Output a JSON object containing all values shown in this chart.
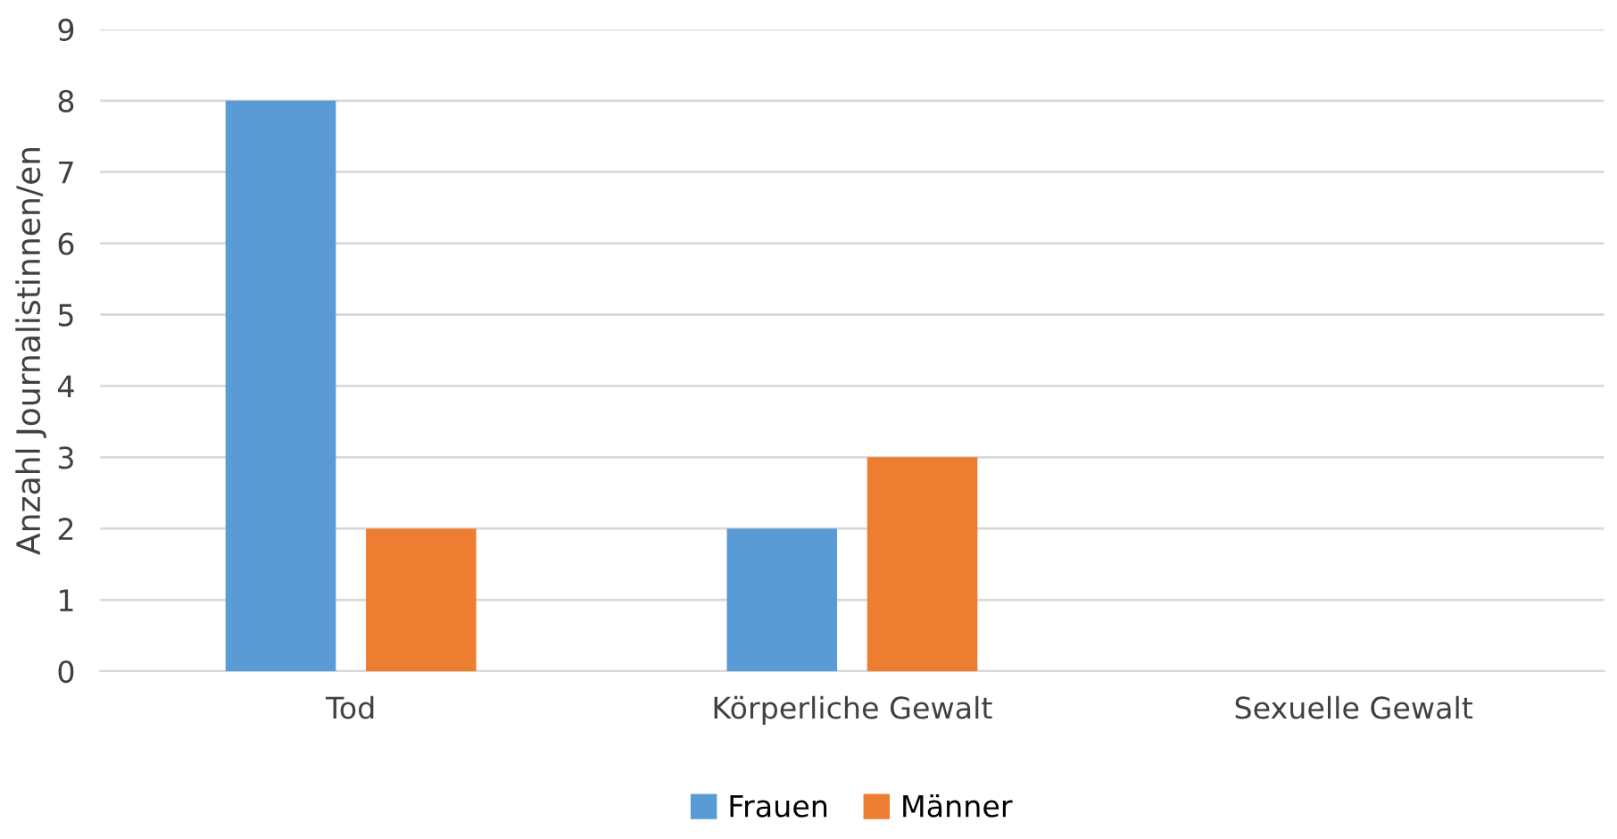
{
  "chart_data": {
    "type": "bar",
    "ylabel": "Anzahl Journalistinnen/en",
    "categories": [
      "Tod",
      "Körperliche Gewalt",
      "Sexuelle Gewalt"
    ],
    "series": [
      {
        "name": "Frauen",
        "color": "#5b9bd5",
        "values": [
          8,
          2,
          0
        ]
      },
      {
        "name": "Männer",
        "color": "#ed7d31",
        "values": [
          2,
          3,
          0
        ]
      }
    ],
    "ylim": [
      0,
      9
    ],
    "yticks": [
      0,
      1,
      2,
      3,
      4,
      5,
      6,
      7,
      8,
      9
    ],
    "grid": "y",
    "legend": "bottom"
  }
}
